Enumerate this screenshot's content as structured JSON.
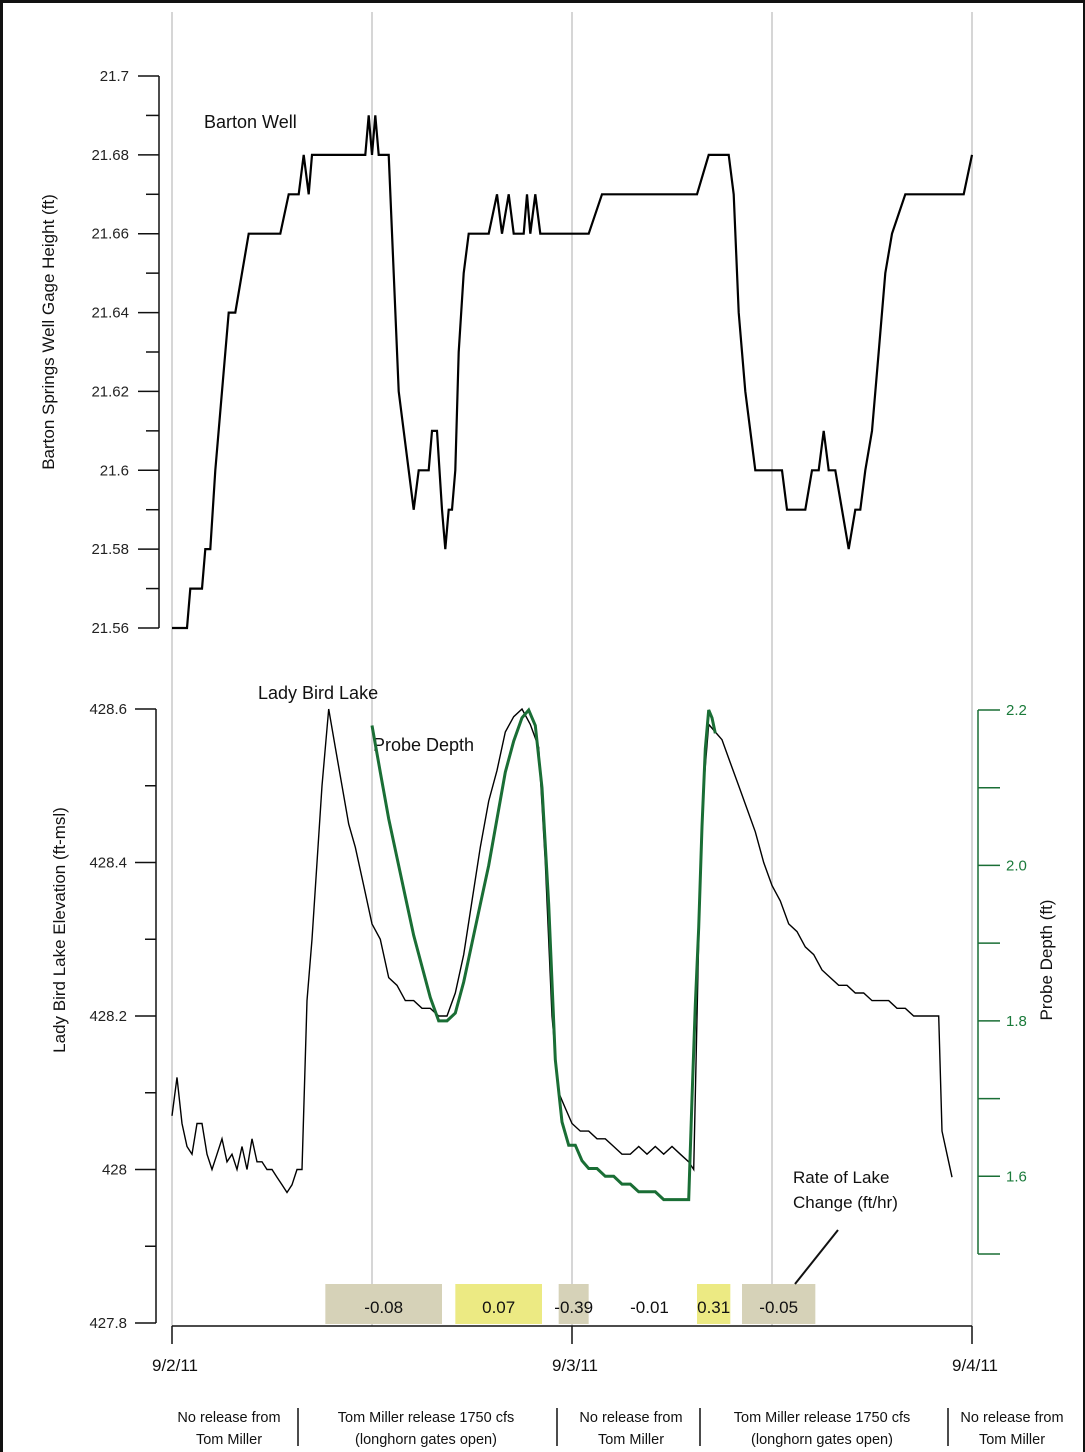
{
  "chart_data": [
    {
      "type": "line",
      "ylabel": "Barton Springs Well Gage Height (ft)",
      "ylim": [
        21.56,
        21.7
      ],
      "yticks": [
        "21.7",
        "21.68",
        "21.66",
        "21.64",
        "21.62",
        "21.6",
        "21.58",
        "21.56"
      ],
      "xlim_hours": [
        0,
        48
      ],
      "series": [
        {
          "name": "Barton Well",
          "color": "#000000",
          "x_hours": [
            0,
            0.9,
            1.1,
            1.8,
            2.0,
            2.3,
            2.6,
            3.0,
            3.4,
            3.8,
            4.2,
            4.6,
            4.9,
            5.1,
            5.4,
            5.8,
            6.5,
            7.0,
            7.3,
            7.6,
            7.9,
            8.2,
            8.4,
            8.6,
            9.0,
            10.0,
            11.0,
            11.6,
            11.8,
            12.0,
            12.2,
            12.4,
            12.6,
            13.0,
            13.3,
            13.6,
            13.9,
            14.2,
            14.5,
            14.8,
            15.1,
            15.4,
            15.6,
            15.9,
            16.2,
            16.4,
            16.6,
            16.8,
            17.0,
            17.2,
            17.5,
            17.8,
            18.1,
            18.4,
            19.0,
            19.5,
            19.8,
            20.2,
            20.5,
            20.8,
            21.1,
            21.3,
            21.5,
            21.8,
            22.1,
            22.4,
            22.8,
            23.2,
            23.6,
            24.0,
            25.0,
            25.8,
            26.1,
            27.0,
            28.0,
            30.0,
            31.5,
            32.2,
            33.0,
            33.4,
            33.7,
            34.0,
            34.4,
            35.0,
            35.3,
            36.0,
            36.6,
            36.9,
            37.3,
            37.6,
            38.0,
            38.4,
            38.8,
            39.1,
            39.4,
            39.8,
            40.2,
            40.6,
            41.0,
            41.3,
            41.6,
            42.0,
            42.4,
            42.8,
            43.2,
            44.0,
            46.0,
            47.5,
            48.0
          ],
          "y": [
            21.56,
            21.56,
            21.57,
            21.57,
            21.58,
            21.58,
            21.6,
            21.62,
            21.64,
            21.64,
            21.65,
            21.66,
            21.66,
            21.66,
            21.66,
            21.66,
            21.66,
            21.67,
            21.67,
            21.67,
            21.68,
            21.67,
            21.68,
            21.68,
            21.68,
            21.68,
            21.68,
            21.68,
            21.69,
            21.68,
            21.69,
            21.68,
            21.68,
            21.68,
            21.65,
            21.62,
            21.61,
            21.6,
            21.59,
            21.6,
            21.6,
            21.6,
            21.61,
            21.61,
            21.59,
            21.58,
            21.59,
            21.59,
            21.6,
            21.63,
            21.65,
            21.66,
            21.66,
            21.66,
            21.66,
            21.67,
            21.66,
            21.67,
            21.66,
            21.66,
            21.66,
            21.67,
            21.66,
            21.67,
            21.66,
            21.66,
            21.66,
            21.66,
            21.66,
            21.66,
            21.66,
            21.67,
            21.67,
            21.67,
            21.67,
            21.67,
            21.67,
            21.68,
            21.68,
            21.68,
            21.67,
            21.64,
            21.62,
            21.6,
            21.6,
            21.6,
            21.6,
            21.59,
            21.59,
            21.59,
            21.59,
            21.6,
            21.6,
            21.61,
            21.6,
            21.6,
            21.59,
            21.58,
            21.59,
            21.59,
            21.6,
            21.61,
            21.63,
            21.65,
            21.66,
            21.67,
            21.67,
            21.67,
            21.68
          ]
        }
      ]
    },
    {
      "type": "line",
      "ylabel": "Lady Bird Lake Elevation (ft-msl)",
      "ylim": [
        427.8,
        428.6
      ],
      "yticks": [
        "428.6",
        "428.4",
        "428.2",
        "428",
        "427.8"
      ],
      "y2label": "Probe Depth (ft)",
      "y2lim": [
        1.5,
        2.2
      ],
      "y2ticks": [
        "2.2",
        "2.0",
        "1.8",
        "1.6"
      ],
      "x_tick_labels": [
        "9/2/11",
        "9/3/11",
        "9/4/11"
      ],
      "series": [
        {
          "name": "Lady Bird Lake",
          "color": "#000000",
          "axis": "left",
          "x_hours": [
            0,
            0.3,
            0.6,
            0.9,
            1.2,
            1.5,
            1.8,
            2.1,
            2.4,
            2.7,
            3.0,
            3.3,
            3.6,
            3.9,
            4.2,
            4.5,
            4.8,
            5.1,
            5.4,
            5.7,
            6.0,
            6.3,
            6.6,
            6.9,
            7.2,
            7.5,
            7.8,
            8.1,
            8.4,
            8.7,
            9.0,
            9.4,
            9.8,
            10.2,
            10.6,
            11.0,
            11.5,
            12.0,
            12.5,
            13.0,
            13.5,
            14.0,
            14.5,
            15.0,
            15.5,
            16.0,
            16.5,
            17.0,
            17.5,
            18.0,
            18.5,
            19.0,
            19.5,
            20.0,
            20.5,
            21.0,
            21.5,
            22.0,
            22.4,
            22.8,
            23.2,
            23.6,
            24.0,
            24.5,
            25.0,
            25.5,
            26.0,
            26.5,
            27.0,
            27.5,
            28.0,
            28.5,
            29.0,
            29.5,
            30.0,
            30.5,
            31.0,
            31.3,
            31.6,
            31.9,
            32.2,
            32.6,
            33.0,
            33.5,
            34.0,
            34.5,
            35.0,
            35.5,
            36.0,
            36.5,
            37.0,
            37.5,
            38.0,
            38.5,
            39.0,
            39.5,
            40.0,
            40.5,
            41.0,
            41.5,
            42.0,
            42.5,
            43.0,
            43.5,
            44.0,
            44.5,
            45.0,
            45.5,
            46.0,
            46.2,
            46.5,
            46.8
          ],
          "y": [
            428.07,
            428.12,
            428.06,
            428.03,
            428.02,
            428.06,
            428.06,
            428.02,
            428.0,
            428.02,
            428.04,
            428.01,
            428.02,
            428.0,
            428.03,
            428.0,
            428.04,
            428.01,
            428.01,
            428.0,
            428.0,
            427.99,
            427.98,
            427.97,
            427.98,
            428.0,
            428.0,
            428.22,
            428.3,
            428.4,
            428.5,
            428.6,
            428.55,
            428.5,
            428.45,
            428.42,
            428.37,
            428.32,
            428.3,
            428.25,
            428.24,
            428.22,
            428.22,
            428.21,
            428.21,
            428.2,
            428.2,
            428.23,
            428.28,
            428.35,
            428.42,
            428.48,
            428.52,
            428.57,
            428.59,
            428.6,
            428.58,
            428.55,
            428.4,
            428.2,
            428.1,
            428.08,
            428.06,
            428.05,
            428.05,
            428.04,
            428.04,
            428.03,
            428.02,
            428.02,
            428.03,
            428.02,
            428.03,
            428.02,
            428.03,
            428.02,
            428.01,
            428.0,
            428.3,
            428.5,
            428.58,
            428.57,
            428.56,
            428.53,
            428.5,
            428.47,
            428.44,
            428.4,
            428.37,
            428.35,
            428.32,
            428.31,
            428.29,
            428.28,
            428.26,
            428.25,
            428.24,
            428.24,
            428.23,
            428.23,
            428.22,
            428.22,
            428.22,
            428.21,
            428.21,
            428.2,
            428.2,
            428.2,
            428.2,
            428.05,
            428.02,
            427.99
          ]
        },
        {
          "name": "Probe Depth",
          "color": "#1a6e35",
          "axis": "right",
          "x_hours": [
            12.0,
            12.5,
            13.0,
            13.5,
            14.0,
            14.5,
            15.0,
            15.5,
            16.0,
            16.5,
            17.0,
            17.5,
            18.0,
            18.5,
            19.0,
            19.5,
            20.0,
            20.5,
            21.0,
            21.4,
            21.8,
            22.2,
            22.6,
            23.0,
            23.4,
            23.8,
            24.2,
            24.6,
            25.0,
            25.5,
            26.0,
            26.5,
            27.0,
            27.5,
            28.0,
            28.5,
            29.0,
            29.5,
            30.0,
            30.5,
            31.0,
            31.2,
            31.4,
            31.6,
            31.8,
            32.0,
            32.2,
            32.4,
            32.6
          ],
          "y": [
            2.18,
            2.12,
            2.06,
            2.01,
            1.96,
            1.91,
            1.87,
            1.83,
            1.8,
            1.8,
            1.81,
            1.85,
            1.9,
            1.95,
            2.0,
            2.06,
            2.12,
            2.16,
            2.19,
            2.2,
            2.18,
            2.1,
            1.95,
            1.75,
            1.67,
            1.64,
            1.64,
            1.62,
            1.61,
            1.61,
            1.6,
            1.6,
            1.59,
            1.59,
            1.58,
            1.58,
            1.58,
            1.57,
            1.57,
            1.57,
            1.57,
            1.7,
            1.82,
            1.92,
            2.05,
            2.15,
            2.2,
            2.19,
            2.17
          ]
        }
      ],
      "annotations": {
        "rate_title_line1": "Rate of Lake",
        "rate_title_line2": "Change (ft/hr)",
        "rates": [
          {
            "value": "-0.08",
            "color": "#d6d2b8",
            "start_h": 9.2,
            "end_h": 16.2
          },
          {
            "value": "0.07",
            "color": "#ecea83",
            "start_h": 17.0,
            "end_h": 22.2
          },
          {
            "value": "-0.39",
            "color": "#d6d2b8",
            "start_h": 23.2,
            "end_h": 25.0
          },
          {
            "value": "-0.01",
            "color": "#ffffff",
            "start_h": 25.8,
            "end_h": 31.5
          },
          {
            "value": "0.31",
            "color": "#ecea83",
            "start_h": 31.5,
            "end_h": 33.5
          },
          {
            "value": "-0.05",
            "color": "#d6d2b8",
            "start_h": 34.2,
            "end_h": 38.6
          }
        ]
      }
    }
  ],
  "periods": [
    {
      "line1": "No release from",
      "line2": "Tom Miller"
    },
    {
      "line1": "Tom Miller release 1750 cfs",
      "line2": "(longhorn gates open)"
    },
    {
      "line1": "No release from",
      "line2": "Tom Miller"
    },
    {
      "line1": "Tom Miller release 1750 cfs",
      "line2": "(longhorn gates open)"
    },
    {
      "line1": "No release from",
      "line2": "Tom Miller"
    }
  ],
  "colors": {
    "probe": "#1a6e35",
    "grid": "#c8c8c8",
    "axis": "#111111"
  }
}
